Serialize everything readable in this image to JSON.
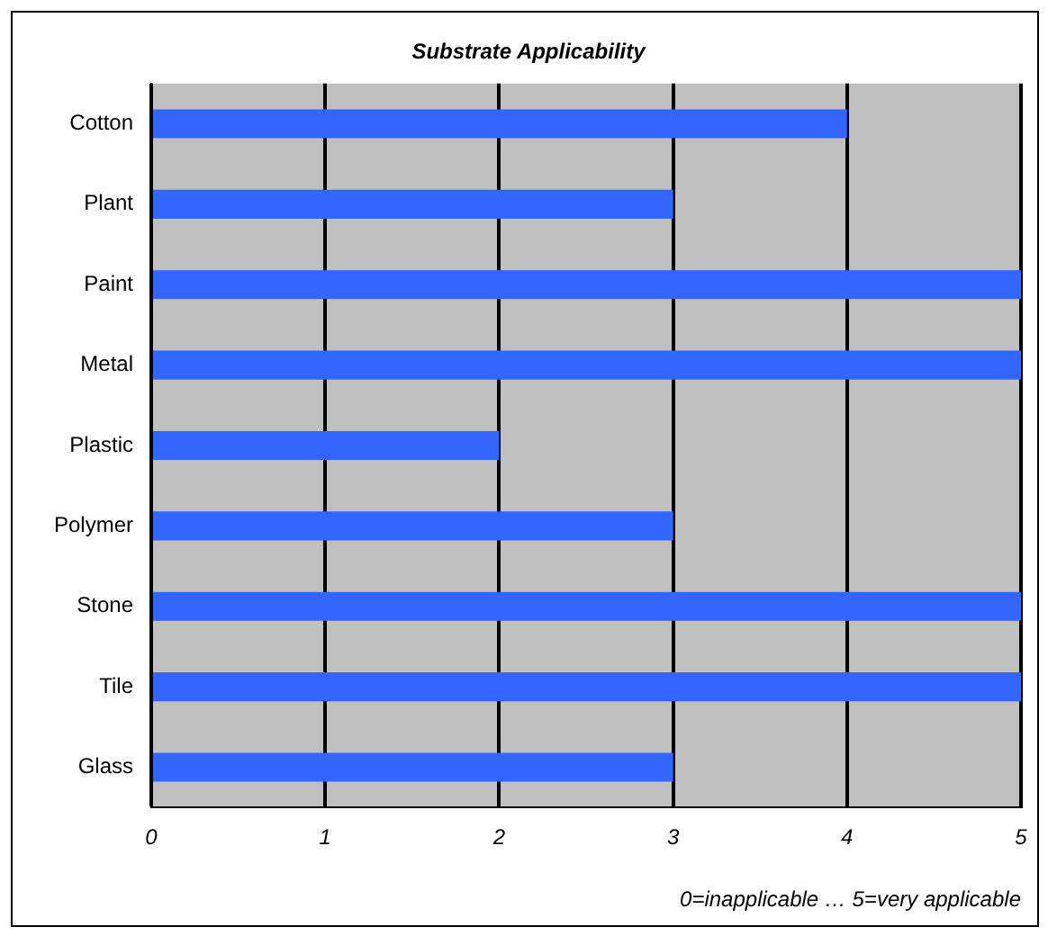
{
  "chart_data": {
    "type": "bar",
    "orientation": "horizontal",
    "title": "Substrate Applicability",
    "categories": [
      "Cotton",
      "Plant",
      "Paint",
      "Metal",
      "Plastic",
      "Polymer",
      "Stone",
      "Tile",
      "Glass"
    ],
    "values": [
      4,
      3,
      5,
      5,
      2,
      3,
      5,
      5,
      3
    ],
    "color": "#3366ff",
    "xlim": [
      0,
      5
    ],
    "xticks": [
      0,
      1,
      2,
      3,
      4,
      5
    ],
    "grid": "x",
    "legend": false,
    "annotations": [
      "0=inapplicable … 5=very applicable"
    ]
  }
}
